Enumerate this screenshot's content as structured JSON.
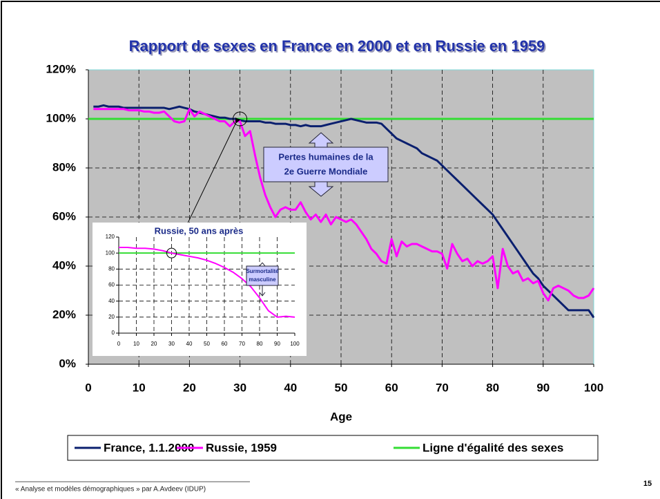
{
  "page_title": "Rapport de sexes en France en 2000 et en Russie en 1959",
  "footer": "« Analyse et modèles démographiques » par A.Avdeev (IDUP)",
  "page_number": "15",
  "chart_data": [
    {
      "type": "line",
      "xlabel": "Age",
      "grid": true,
      "legend": "bottom",
      "annotation": [
        "Pertes humaines de la",
        "2e Guerre Mondiale"
      ],
      "xlim": [
        0,
        100
      ],
      "xticks": [
        0,
        10,
        20,
        30,
        40,
        50,
        60,
        70,
        80,
        90,
        100
      ],
      "ylim": [
        0,
        120
      ],
      "yticks": [
        {
          "value": 0,
          "label": "0%"
        },
        {
          "value": 20,
          "label": "20%"
        },
        {
          "value": 40,
          "label": "40%"
        },
        {
          "value": 60,
          "label": "60%"
        },
        {
          "value": 80,
          "label": "80%"
        },
        {
          "value": 100,
          "label": "100%"
        },
        {
          "value": 120,
          "label": "120%"
        }
      ],
      "x": [
        1,
        2,
        3,
        4,
        5,
        6,
        7,
        8,
        9,
        10,
        11,
        12,
        13,
        14,
        15,
        16,
        17,
        18,
        19,
        20,
        21,
        22,
        23,
        24,
        25,
        26,
        27,
        28,
        29,
        30,
        31,
        32,
        33,
        34,
        35,
        36,
        37,
        38,
        39,
        40,
        41,
        42,
        43,
        44,
        45,
        46,
        47,
        48,
        49,
        50,
        51,
        52,
        53,
        54,
        55,
        56,
        57,
        58,
        59,
        60,
        61,
        62,
        63,
        64,
        65,
        66,
        67,
        68,
        69,
        70,
        71,
        72,
        73,
        74,
        75,
        76,
        77,
        78,
        79,
        80,
        81,
        82,
        83,
        84,
        85,
        86,
        87,
        88,
        89,
        90,
        91,
        92,
        93,
        94,
        95,
        96,
        97,
        98,
        99,
        100
      ],
      "series": [
        {
          "name": "France, 1.1.2000",
          "color": "#0a1f6e",
          "values": [
            105,
            105,
            105.5,
            105,
            105,
            105,
            104.5,
            104.5,
            104.5,
            104.5,
            104.5,
            104.5,
            104.5,
            104.5,
            104.5,
            104,
            104.5,
            105,
            104.5,
            104,
            103,
            102.5,
            102,
            101.5,
            101,
            100.5,
            100.5,
            100,
            100,
            99.5,
            99,
            99,
            99,
            99,
            98.5,
            98.5,
            98,
            98,
            98,
            97.5,
            97.5,
            97,
            97.5,
            97,
            97,
            97,
            97.5,
            98,
            98.5,
            99,
            99.5,
            100,
            99.5,
            99,
            98.5,
            98.5,
            98.5,
            98,
            96,
            94,
            92,
            91,
            90,
            89,
            88,
            86,
            85,
            84,
            83,
            81,
            79,
            77,
            75,
            73,
            71,
            69,
            67,
            65,
            63,
            61,
            58,
            55,
            52,
            49,
            46,
            43,
            40,
            37,
            35,
            32,
            30,
            28,
            26,
            24,
            22,
            22,
            22,
            22,
            22,
            19
          ]
        },
        {
          "name": "Russie, 1959",
          "color": "#ff00ff",
          "values": [
            104,
            104,
            104,
            104,
            104,
            104,
            104,
            103.5,
            103.5,
            103.5,
            103,
            103,
            102.5,
            102.5,
            103,
            101,
            99,
            98.5,
            99,
            104,
            101,
            103,
            102,
            101,
            100,
            99,
            99,
            97,
            99,
            99,
            93,
            95,
            85,
            76,
            69,
            64,
            60,
            63,
            64,
            63,
            63,
            66,
            62,
            59,
            61,
            58,
            61,
            57,
            60,
            59,
            58,
            59,
            57,
            54,
            51,
            47,
            45,
            42,
            41,
            51,
            44,
            50,
            48,
            49,
            49,
            48,
            47,
            46,
            46,
            45,
            39,
            49,
            45,
            42,
            43,
            40,
            42,
            41,
            42,
            44,
            31,
            47,
            40,
            37,
            38,
            34,
            35,
            33,
            34,
            29,
            26,
            31,
            32,
            31,
            30,
            28,
            27,
            27,
            28,
            31
          ]
        },
        {
          "name": "Ligne d'égalité des sexes",
          "color": "#33dd33",
          "x": [
            0,
            100
          ],
          "values": [
            100,
            100
          ]
        }
      ]
    },
    {
      "type": "line",
      "title": "Russie, 50 ans après",
      "grid": true,
      "annotation": [
        "Surmortalité",
        "masculine"
      ],
      "xlim": [
        0,
        100
      ],
      "xticks": [
        0,
        10,
        20,
        30,
        40,
        50,
        60,
        70,
        80,
        90,
        100
      ],
      "ylim": [
        0,
        120
      ],
      "yticks": [
        0,
        20,
        40,
        60,
        80,
        100,
        120
      ],
      "x": [
        0,
        5,
        10,
        15,
        20,
        25,
        30,
        35,
        40,
        45,
        50,
        55,
        60,
        65,
        70,
        75,
        80,
        85,
        90,
        95,
        100
      ],
      "series": [
        {
          "color": "#ff00ff",
          "values": [
            107,
            107,
            106,
            106,
            105,
            103,
            100,
            98,
            96,
            94,
            91,
            87,
            82,
            76,
            68,
            58,
            44,
            28,
            20,
            21,
            20
          ]
        },
        {
          "color": "#33dd33",
          "x": [
            0,
            100
          ],
          "values": [
            100,
            100
          ]
        }
      ]
    }
  ]
}
